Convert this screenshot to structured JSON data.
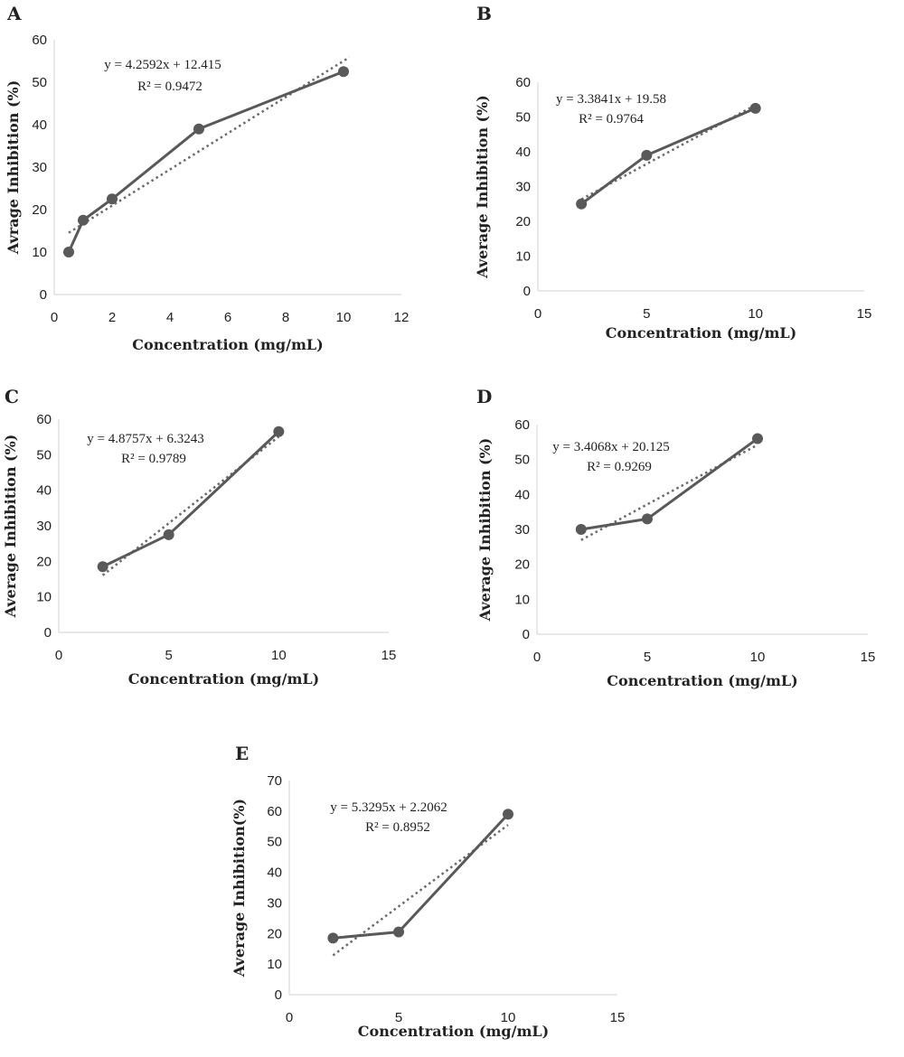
{
  "chart_data": [
    {
      "panel": "A",
      "type": "scatter",
      "xlabel": "Concentration (mg/mL)",
      "ylabel": "Avrage Inhibition (%)",
      "xlim": [
        0,
        12
      ],
      "ylim": [
        0,
        60
      ],
      "xticks": [
        0,
        2,
        4,
        6,
        8,
        10,
        12
      ],
      "yticks": [
        0,
        10,
        20,
        30,
        40,
        50,
        60
      ],
      "x": [
        0.5,
        1,
        2,
        5,
        10
      ],
      "y": [
        10,
        17.5,
        22.5,
        39,
        52.5
      ],
      "trendline": {
        "slope": 4.2592,
        "intercept": 12.415
      },
      "equation": "y = 4.2592x + 12.415",
      "r_squared": "R² = 0.9472",
      "grid": false,
      "legend": "none"
    },
    {
      "panel": "B",
      "type": "scatter",
      "xlabel": "Concentration (mg/mL)",
      "ylabel": "Average Inhibition (%)",
      "xlim": [
        0,
        15
      ],
      "ylim": [
        0,
        60
      ],
      "xticks": [
        0,
        5,
        10,
        15
      ],
      "yticks": [
        0,
        10,
        20,
        30,
        40,
        50,
        60
      ],
      "x": [
        2,
        5,
        10
      ],
      "y": [
        25,
        39,
        52.5
      ],
      "trendline": {
        "slope": 3.3841,
        "intercept": 19.58
      },
      "equation": "y = 3.3841x + 19.58",
      "r_squared": "R² = 0.9764",
      "grid": false,
      "legend": "none"
    },
    {
      "panel": "C",
      "type": "scatter",
      "xlabel": "Concentration (mg/mL)",
      "ylabel": "Average Inhibition (%)",
      "xlim": [
        0,
        15
      ],
      "ylim": [
        0,
        60
      ],
      "xticks": [
        0,
        5,
        10,
        15
      ],
      "yticks": [
        0,
        10,
        20,
        30,
        40,
        50,
        60
      ],
      "x": [
        2,
        5,
        10
      ],
      "y": [
        18.5,
        27.5,
        56.5
      ],
      "trendline": {
        "slope": 4.8757,
        "intercept": 6.3243
      },
      "equation": "y = 4.8757x + 6.3243",
      "r_squared": "R² = 0.9789",
      "grid": false,
      "legend": "none"
    },
    {
      "panel": "D",
      "type": "scatter",
      "xlabel": "Concentration (mg/mL)",
      "ylabel": "Average Inhibition (%)",
      "xlim": [
        0,
        15
      ],
      "ylim": [
        0,
        60
      ],
      "xticks": [
        0,
        5,
        10,
        15
      ],
      "yticks": [
        0,
        10,
        20,
        30,
        40,
        50,
        60
      ],
      "x": [
        2,
        5,
        10
      ],
      "y": [
        30,
        33,
        56
      ],
      "trendline": {
        "slope": 3.4068,
        "intercept": 20.125
      },
      "equation": "y = 3.4068x + 20.125",
      "r_squared": "R² = 0.9269",
      "grid": false,
      "legend": "none"
    },
    {
      "panel": "E",
      "type": "scatter",
      "xlabel": "Concentration (mg/mL)",
      "ylabel": "Average Inhibition(%)",
      "xlim": [
        0,
        15
      ],
      "ylim": [
        0,
        70
      ],
      "xticks": [
        0,
        5,
        10,
        15
      ],
      "yticks": [
        0,
        10,
        20,
        30,
        40,
        50,
        60,
        70
      ],
      "x": [
        2,
        5,
        10
      ],
      "y": [
        18.5,
        20.5,
        59
      ],
      "trendline": {
        "slope": 5.3295,
        "intercept": 2.2062
      },
      "equation": "y = 5.3295x + 2.2062",
      "r_squared": "R² = 0.8952",
      "grid": false,
      "legend": "none"
    }
  ]
}
